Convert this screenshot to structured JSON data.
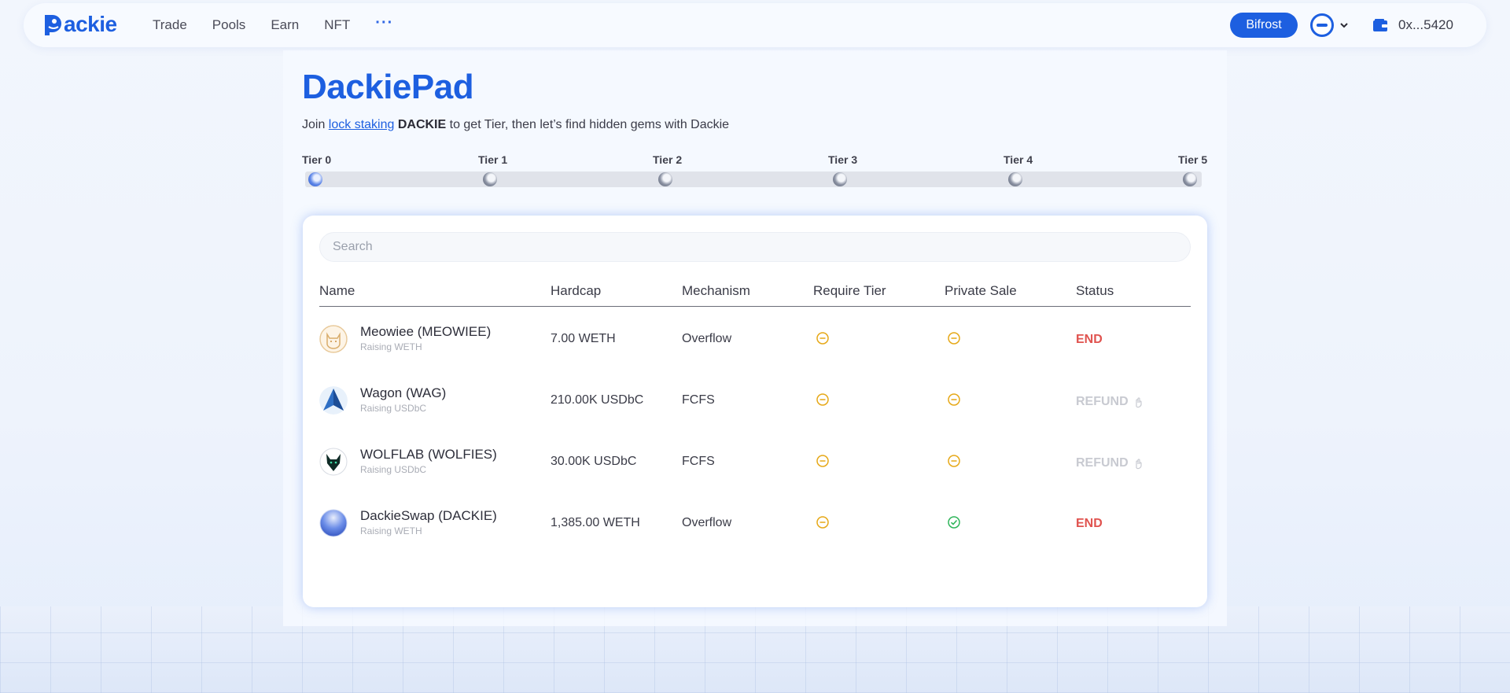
{
  "nav": {
    "logo_text": "ackie",
    "links": [
      "Trade",
      "Pools",
      "Earn",
      "NFT"
    ],
    "more": "···",
    "bifrost_label": "Bifrost",
    "wallet_address": "0x...5420"
  },
  "page": {
    "title": "DackiePad",
    "subtitle_prefix": "Join ",
    "subtitle_link": "lock staking",
    "subtitle_bold": " DACKIE",
    "subtitle_suffix": " to get Tier, then let’s find hidden gems with Dackie"
  },
  "tiers": [
    "Tier 0",
    "Tier 1",
    "Tier 2",
    "Tier 3",
    "Tier 4",
    "Tier 5"
  ],
  "search": {
    "placeholder": "Search"
  },
  "table": {
    "headers": [
      "Name",
      "Hardcap",
      "Mechanism",
      "Require Tier",
      "Private Sale",
      "Status"
    ],
    "rows": [
      {
        "name": "Meowiee (MEOWIEE)",
        "raising": "Raising WETH",
        "hardcap": "7.00 WETH",
        "mechanism": "Overflow",
        "require_tier": "minus",
        "private_sale": "minus",
        "status": "END"
      },
      {
        "name": "Wagon (WAG)",
        "raising": "Raising USDbC",
        "hardcap": "210.00K USDbC",
        "mechanism": "FCFS",
        "require_tier": "minus",
        "private_sale": "minus",
        "status": "REFUND"
      },
      {
        "name": "WOLFLAB (WOLFIES)",
        "raising": "Raising USDbC",
        "hardcap": "30.00K USDbC",
        "mechanism": "FCFS",
        "require_tier": "minus",
        "private_sale": "minus",
        "status": "REFUND"
      },
      {
        "name": "DackieSwap (DACKIE)",
        "raising": "Raising WETH",
        "hardcap": "1,385.00 WETH",
        "mechanism": "Overflow",
        "require_tier": "minus",
        "private_sale": "check",
        "status": "END"
      }
    ]
  },
  "colors": {
    "brand": "#1d5fe0",
    "end": "#e0534f",
    "refund": "#c8cad1",
    "minus": "#e6a817",
    "check": "#2fb55a"
  }
}
